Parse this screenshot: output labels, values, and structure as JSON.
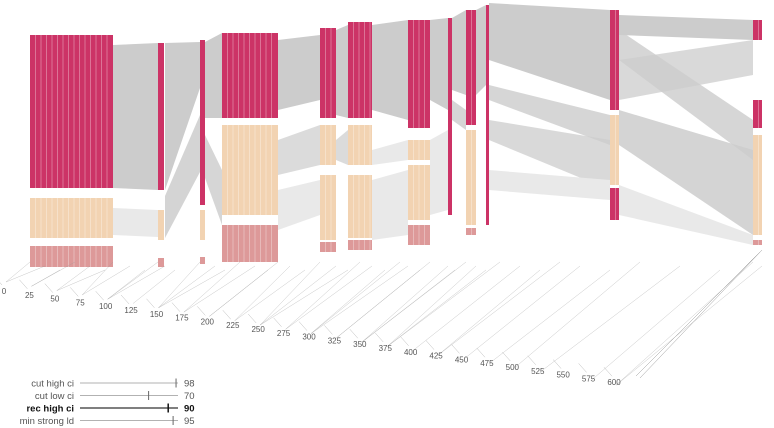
{
  "chart_data": {
    "type": "alluvial",
    "axis": {
      "ticks": [
        "0",
        "25",
        "50",
        "75",
        "100",
        "125",
        "150",
        "175",
        "200",
        "225",
        "250",
        "275",
        "300",
        "325",
        "350",
        "375",
        "400",
        "425",
        "450",
        "475",
        "500",
        "525",
        "550",
        "575",
        "600"
      ],
      "range": [
        0,
        600
      ]
    },
    "colors": {
      "strong": "#cc3366",
      "low": "#f2d3b2",
      "weak": "#dd9999",
      "flow": "#cccccc",
      "flow_light": "#e9e9e9"
    },
    "legend": [
      {
        "label": "cut high ci",
        "value": "98",
        "slider": 98,
        "active": false
      },
      {
        "label": "cut low ci",
        "value": "70",
        "slider": 70,
        "active": false
      },
      {
        "label": "rec high ci",
        "value": "90",
        "slider": 90,
        "active": true
      },
      {
        "label": "min strong ld",
        "value": "95",
        "slider": 95,
        "active": false
      }
    ]
  }
}
